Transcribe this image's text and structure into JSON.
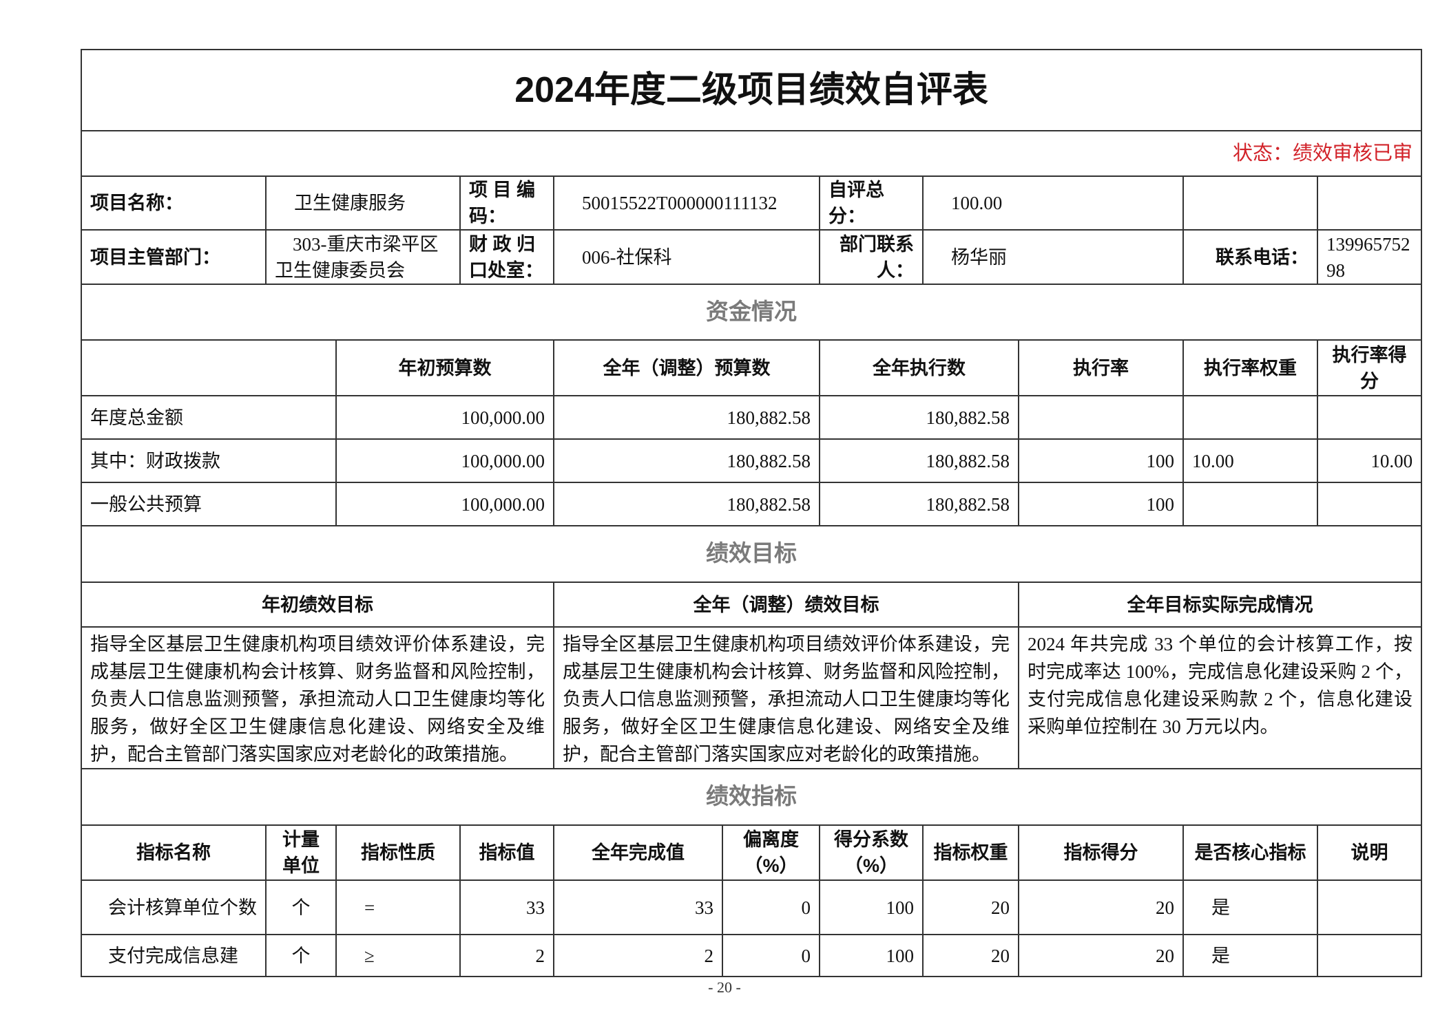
{
  "title": "2024年度二级项目绩效自评表",
  "status": "状态：绩效审核已审",
  "info": {
    "project_name_label": "项目名称：",
    "project_name": "卫生健康服务",
    "project_code_label": "项 目 编 码：",
    "project_code": "50015522T000000111132",
    "score_label": "自评总分：",
    "score": "100.00",
    "dept_label": "项目主管部门：",
    "dept": "303-重庆市梁平区卫生健康委员会",
    "office_label": "财 政 归 口处室：",
    "office": "006-社保科",
    "contact_label": "部门联系人：",
    "contact": "杨华丽",
    "phone_label": "联系电话：",
    "phone": "13996575298"
  },
  "funds": {
    "section": "资金情况",
    "headers": [
      "",
      "年初预算数",
      "全年（调整）预算数",
      "全年执行数",
      "执行率",
      "执行率权重",
      "执行率得分"
    ],
    "rows": [
      [
        "年度总金额",
        "100,000.00",
        "180,882.58",
        "180,882.58",
        "",
        "",
        ""
      ],
      [
        "其中：财政拨款",
        "100,000.00",
        "180,882.58",
        "180,882.58",
        "100",
        "10.00",
        "10.00"
      ],
      [
        "一般公共预算",
        "100,000.00",
        "180,882.58",
        "180,882.58",
        "100",
        "",
        ""
      ]
    ]
  },
  "goals": {
    "section": "绩效目标",
    "headers": [
      "年初绩效目标",
      "全年（调整）绩效目标",
      "全年目标实际完成情况"
    ],
    "initial": "指导全区基层卫生健康机构项目绩效评价体系建设，完成基层卫生健康机构会计核算、财务监督和风险控制，负责人口信息监测预警，承担流动人口卫生健康均等化服务，做好全区卫生健康信息化建设、网络安全及维护，配合主管部门落实国家应对老龄化的政策措施。",
    "adjusted": "指导全区基层卫生健康机构项目绩效评价体系建设，完成基层卫生健康机构会计核算、财务监督和风险控制，负责人口信息监测预警，承担流动人口卫生健康均等化服务，做好全区卫生健康信息化建设、网络安全及维护，配合主管部门落实国家应对老龄化的政策措施。",
    "actual": "2024 年共完成 33 个单位的会计核算工作，按时完成率达 100%，完成信息化建设采购 2 个，支付完成信息化建设采购款 2 个，信息化建设采购单位控制在 30 万元以内。"
  },
  "indicators": {
    "section": "绩效指标",
    "headers": [
      "指标名称",
      "计量单位",
      "指标性质",
      "指标值",
      "全年完成值",
      "偏离度（%）",
      "得分系数（%）",
      "指标权重",
      "指标得分",
      "是否核心指标",
      "说明"
    ],
    "rows": [
      [
        "会计核算单位个数",
        "个",
        "=",
        "33",
        "33",
        "0",
        "100",
        "20",
        "20",
        "是",
        ""
      ],
      [
        "支付完成信息建",
        "个",
        "≥",
        "2",
        "2",
        "0",
        "100",
        "20",
        "20",
        "是",
        ""
      ]
    ]
  },
  "page_number": "- 20 -"
}
